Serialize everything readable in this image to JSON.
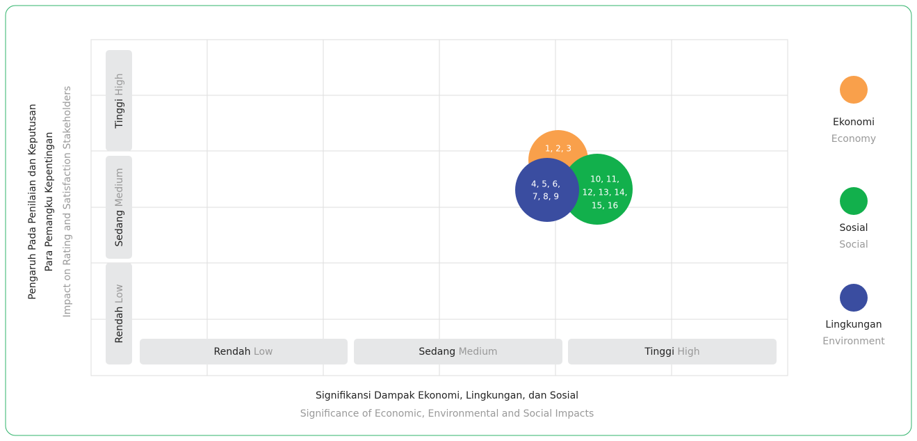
{
  "y_axis": {
    "title_lines": [
      "Pengaruh Pada Penilaian dan Keputusan",
      "Para Pemangku Kepentingan"
    ],
    "subtitle": "Impact on Rating and Satisfaction Stakeholders"
  },
  "x_axis": {
    "title": "Signifikansi Dampak Ekonomi, Lingkungan, dan Sosial",
    "subtitle": "Significance of Economic, Environmental and Social Impacts"
  },
  "y_levels": [
    {
      "label": "Tinggi",
      "sublabel": "High"
    },
    {
      "label": "Sedang",
      "sublabel": "Medium"
    },
    {
      "label": "Rendah",
      "sublabel": "Low"
    }
  ],
  "x_levels": [
    {
      "label": "Rendah",
      "sublabel": "Low"
    },
    {
      "label": "Sedang",
      "sublabel": "Medium"
    },
    {
      "label": "Tinggi",
      "sublabel": "High"
    }
  ],
  "bubbles": [
    {
      "lines": [
        "1, 2, 3"
      ]
    },
    {
      "lines": [
        "10, 11,",
        "12, 13, 14,",
        "15, 16"
      ]
    },
    {
      "lines": [
        "4, 5, 6,",
        "7, 8, 9"
      ]
    }
  ],
  "legend": [
    {
      "name": "Ekonomi",
      "sublabel": "Economy"
    },
    {
      "name": "Sosial",
      "sublabel": "Social"
    },
    {
      "name": "Lingkungan",
      "sublabel": "Environment"
    }
  ]
}
